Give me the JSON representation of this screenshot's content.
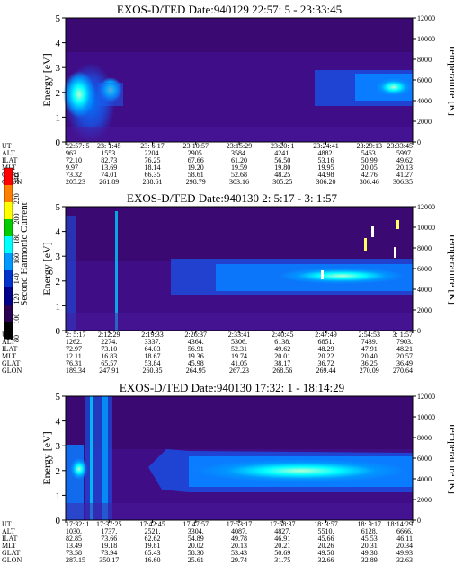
{
  "colorbar": {
    "label": "Second Harmonic Current",
    "ticks": [
      "240",
      "220",
      "200",
      "180",
      "160",
      "140",
      "120",
      "100",
      "80"
    ],
    "colors": [
      "#ff0000",
      "#ff7f00",
      "#ffff00",
      "#00cc00",
      "#00ffff",
      "#0099ff",
      "#0033cc",
      "#000088",
      "#2a0050",
      "#000000"
    ]
  },
  "chart_data": [
    {
      "type": "heatmap",
      "title": "EXOS-D/TED  Date:940129  22:57: 5 - 23:33:45",
      "ylabel": "Energy [eV]",
      "y2label": "Temperature [K]",
      "yticks": [
        "0",
        "1",
        "2",
        "3",
        "4",
        "5"
      ],
      "y2ticks": [
        "0",
        "2000",
        "4000",
        "6000",
        "8000",
        "10000",
        "12000"
      ],
      "ylim": [
        0,
        5
      ],
      "y2lim": [
        0,
        12000
      ],
      "row_labels": [
        "UT",
        "ALT",
        "ILAT",
        "MLT",
        "GLAT",
        "GLON"
      ],
      "columns": [
        [
          "22:57: 5",
          "963.",
          "72.10",
          "9.97",
          "73.32",
          "205.23"
        ],
        [
          "23: 1:45",
          "1553.",
          "82.73",
          "13.69",
          "74.01",
          "261.89"
        ],
        [
          "23: 6:17",
          "2204.",
          "76.25",
          "18.14",
          "66.35",
          "288.61"
        ],
        [
          "23:10:57",
          "2905.",
          "67.66",
          "19.20",
          "58.61",
          "298.79"
        ],
        [
          "23:15:29",
          "3584.",
          "61.20",
          "19.59",
          "52.68",
          "303.16"
        ],
        [
          "23:20: 1",
          "4241.",
          "56.50",
          "19.80",
          "48.25",
          "305.25"
        ],
        [
          "23:24:41",
          "4882.",
          "53.16",
          "19.95",
          "44.98",
          "306.20"
        ],
        [
          "23:29:13",
          "5463.",
          "50.99",
          "20.05",
          "42.76",
          "306.46"
        ],
        [
          "23:33:45",
          "5997.",
          "49.62",
          "20.13",
          "41.27",
          "306.35"
        ]
      ]
    },
    {
      "type": "heatmap",
      "title": "EXOS-D/TED   Date:940130  2: 5:17 - 3: 1:57",
      "ylabel": "Energy [eV]",
      "y2label": "Temperature [K]",
      "yticks": [
        "0",
        "1",
        "2",
        "3",
        "4",
        "5"
      ],
      "y2ticks": [
        "0",
        "2000",
        "4000",
        "6000",
        "8000",
        "10000",
        "12000"
      ],
      "ylim": [
        0,
        5
      ],
      "y2lim": [
        0,
        12000
      ],
      "row_labels": [
        "UT",
        "ALT",
        "ILAT",
        "MLT",
        "GLAT",
        "GLON"
      ],
      "columns": [
        [
          "2: 5:17",
          "1262.",
          "72.97",
          "12.11",
          "76.31",
          "189.34"
        ],
        [
          "2:12:29",
          "2274.",
          "73.10",
          "16.83",
          "65.57",
          "247.91"
        ],
        [
          "2:19:33",
          "3337.",
          "64.03",
          "18.67",
          "53.84",
          "260.35"
        ],
        [
          "2:26:37",
          "4364.",
          "56.91",
          "19.36",
          "45.98",
          "264.95"
        ],
        [
          "2:33:41",
          "5306.",
          "52.31",
          "19.74",
          "41.05",
          "267.23"
        ],
        [
          "2:40:45",
          "6138.",
          "49.62",
          "20.01",
          "38.17",
          "268.56"
        ],
        [
          "2:47:49",
          "6851.",
          "48.29",
          "20.22",
          "36.72",
          "269.44"
        ],
        [
          "2:54:53",
          "7439.",
          "47.91",
          "20.40",
          "36.25",
          "270.09"
        ],
        [
          "3: 1:57",
          "7903.",
          "48.21",
          "20.57",
          "36.49",
          "270.64"
        ]
      ]
    },
    {
      "type": "heatmap",
      "title": "EXOS-D/TED   Date:940130  17:32: 1 - 18:14:29",
      "ylabel": "Energy [eV]",
      "y2label": "Temperature [K]",
      "yticks": [
        "0",
        "1",
        "2",
        "3",
        "4",
        "5"
      ],
      "y2ticks": [
        "0",
        "2000",
        "4000",
        "6000",
        "8000",
        "10000",
        "12000"
      ],
      "ylim": [
        0,
        5
      ],
      "y2lim": [
        0,
        12000
      ],
      "row_labels": [
        "UT",
        "ALT",
        "ILAT",
        "MLT",
        "GLAT",
        "GLON"
      ],
      "columns": [
        [
          "17:32: 1",
          "1030.",
          "82.85",
          "13.49",
          "73.58",
          "287.15"
        ],
        [
          "17:37:25",
          "1737.",
          "73.66",
          "19.18",
          "73.94",
          "350.17"
        ],
        [
          "17:42:45",
          "2521.",
          "62.62",
          "19.81",
          "65.43",
          "16.60"
        ],
        [
          "17:47:57",
          "3304.",
          "54.89",
          "20.02",
          "58.30",
          "25.61"
        ],
        [
          "17:53:17",
          "4087.",
          "49.78",
          "20.13",
          "53.43",
          "29.74"
        ],
        [
          "17:58:37",
          "4827.",
          "46.91",
          "20.21",
          "50.69",
          "31.75"
        ],
        [
          "18: 3:57",
          "5510.",
          "45.66",
          "20.26",
          "49.50",
          "32.66"
        ],
        [
          "18: 9:17",
          "6128.",
          "45.53",
          "20.31",
          "49.38",
          "32.89"
        ],
        [
          "18:14:29",
          "6666.",
          "46.11",
          "20.34",
          "49.93",
          "32.63"
        ]
      ]
    }
  ]
}
